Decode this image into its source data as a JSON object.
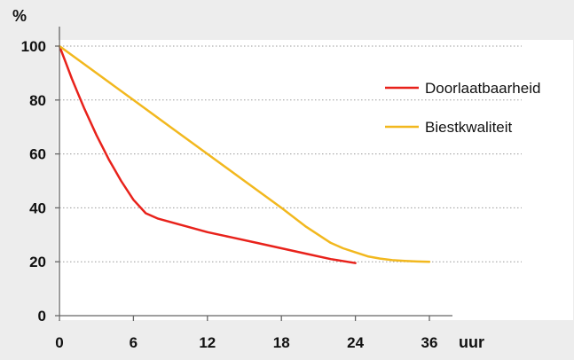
{
  "chart_data": {
    "type": "line",
    "ylabel": "%",
    "xlabel": "uur",
    "x_ticks": [
      "0",
      "6",
      "12",
      "18",
      "24",
      "36"
    ],
    "y_ticks": [
      0,
      20,
      40,
      60,
      80,
      100
    ],
    "ylim": [
      0,
      100
    ],
    "grid": "horizontal dotted",
    "legend_position": "right",
    "series": [
      {
        "name": "Doorlaatbaarheid",
        "color": "#e8221b",
        "x": [
          0,
          0.5,
          1,
          1.5,
          2,
          3,
          4,
          5,
          6,
          7,
          8,
          10,
          12,
          14,
          16,
          18,
          20,
          22,
          24
        ],
        "y": [
          100,
          94,
          88,
          82.5,
          77,
          67,
          58,
          50,
          43,
          38,
          36,
          33.5,
          31,
          29,
          27,
          25,
          23,
          21,
          19.5
        ]
      },
      {
        "name": "Biestkwaliteit",
        "color": "#f2b81e",
        "x": [
          0,
          3,
          6,
          9,
          12,
          15,
          18,
          20,
          22,
          23,
          24,
          26,
          28,
          30,
          32,
          34,
          36
        ],
        "y": [
          100,
          90,
          80,
          70,
          60,
          50,
          40,
          33,
          27,
          25,
          23.5,
          22,
          21.2,
          20.6,
          20.3,
          20.1,
          20
        ]
      }
    ]
  }
}
